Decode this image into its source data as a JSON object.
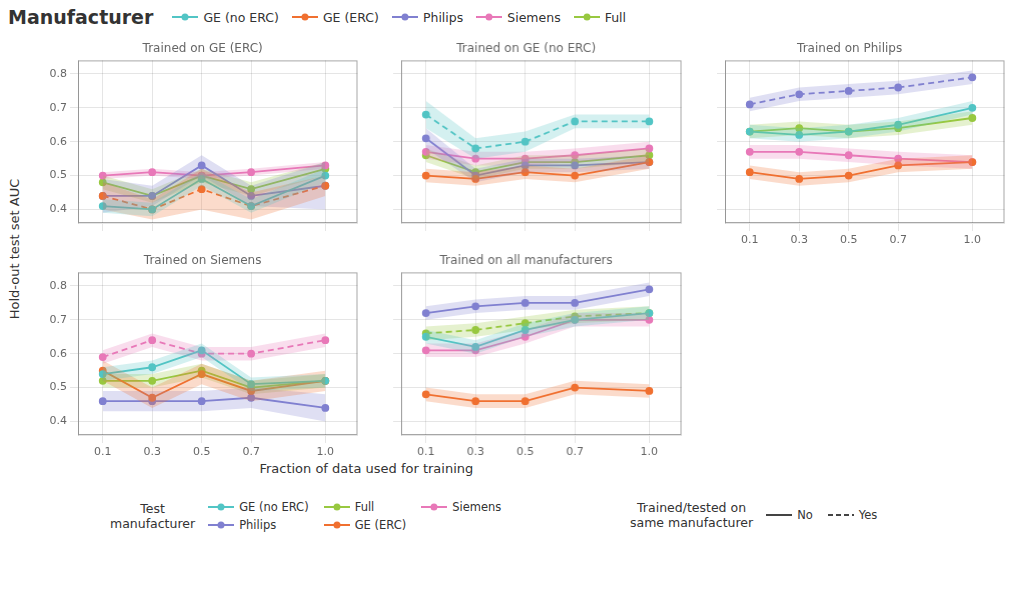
{
  "xlabel": "Fraction of data used for training",
  "ylabel": "Hold-out test set AUC",
  "legends": [
    {
      "title": "Manufacturer",
      "items": [
        {
          "name": "GE (no ERC)",
          "color": "#52c5c5",
          "marker": "circle",
          "line_style": "solid"
        },
        {
          "name": "GE (ERC)",
          "color": "#f07030",
          "marker": "circle",
          "line_style": "solid"
        },
        {
          "name": "Philips",
          "color": "#8080d0",
          "marker": "circle",
          "line_style": "solid"
        },
        {
          "name": "Siemens",
          "color": "#e878b8",
          "marker": "circle",
          "line_style": "solid"
        },
        {
          "name": "Full",
          "color": "#98c840",
          "marker": "circle",
          "line_style": "solid"
        }
      ]
    },
    {
      "title": "Test\nmanufacturer",
      "items": [
        {
          "name": "GE (no ERC)",
          "color": "#52c5c5",
          "marker": "circle",
          "line_style": "solid"
        },
        {
          "name": "Philips",
          "color": "#8080d0",
          "marker": "circle",
          "line_style": "solid"
        },
        {
          "name": "Full",
          "color": "#98c840",
          "marker": "circle",
          "line_style": "solid"
        },
        {
          "name": "GE (ERC)",
          "color": "#f07030",
          "marker": "circle",
          "line_style": "solid"
        },
        {
          "name": "Siemens",
          "color": "#e878b8",
          "marker": "circle",
          "line_style": "solid"
        }
      ]
    },
    {
      "title": "Trained/tested on\nsame manufacturer",
      "items": [
        {
          "name": "No",
          "color": "#444444",
          "line_style": "solid"
        },
        {
          "name": "Yes",
          "color": "#444444",
          "line_style": "dashed"
        }
      ]
    }
  ],
  "chart_data": [
    {
      "type": "line",
      "title": "Trained on GE (ERC)",
      "marker": "circle",
      "grid": true,
      "tick_labels": "y",
      "x": [
        0.1,
        0.3,
        0.5,
        0.7,
        1.0
      ],
      "xlim": [
        0.0,
        1.13
      ],
      "xticks": [
        0.1,
        0.3,
        0.5,
        0.7,
        {
          "value": 1.0,
          "label": "1.0"
        }
      ],
      "ylim": [
        0.36,
        0.84
      ],
      "yticks": [
        0.4,
        0.5,
        0.6,
        0.7,
        0.8
      ],
      "series": [
        {
          "name": "GE (no ERC)",
          "color": "#52c5c5",
          "line_style": "solid",
          "values": [
            0.41,
            0.4,
            0.49,
            0.41,
            0.5
          ],
          "yerr": [
            0.02,
            0.02,
            0.02,
            0.02,
            0.02
          ]
        },
        {
          "name": "GE (ERC)",
          "color": "#f07030",
          "line_style": "dashed",
          "values": [
            0.44,
            0.4,
            0.46,
            0.41,
            0.47
          ],
          "yerr": [
            0.04,
            0.03,
            0.06,
            0.04,
            0.03
          ]
        },
        {
          "name": "Philips",
          "color": "#8080d0",
          "line_style": "solid",
          "values": [
            0.44,
            0.44,
            0.53,
            0.44,
            0.47
          ],
          "yerr": [
            0.05,
            0.03,
            0.03,
            0.03,
            0.07
          ]
        },
        {
          "name": "Siemens",
          "color": "#e878b8",
          "line_style": "solid",
          "values": [
            0.5,
            0.51,
            0.5,
            0.51,
            0.53
          ],
          "yerr": [
            0.01,
            0.01,
            0.01,
            0.01,
            0.01
          ]
        },
        {
          "name": "Full",
          "color": "#98c840",
          "line_style": "solid",
          "values": [
            0.48,
            0.44,
            0.5,
            0.46,
            0.52
          ],
          "yerr": [
            0.02,
            0.02,
            0.02,
            0.02,
            0.02
          ]
        }
      ]
    },
    {
      "type": "line",
      "title": "Trained on GE (no ERC)",
      "marker": "circle",
      "grid": true,
      "tick_labels": false,
      "x": [
        0.1,
        0.3,
        0.5,
        0.7,
        1.0
      ],
      "xlim": [
        0.0,
        1.13
      ],
      "xticks": [
        0.1,
        0.3,
        0.5,
        0.7,
        {
          "value": 1.0,
          "label": "1.0"
        }
      ],
      "ylim": [
        0.36,
        0.84
      ],
      "yticks": [
        0.4,
        0.5,
        0.6,
        0.7,
        0.8
      ],
      "series": [
        {
          "name": "GE (no ERC)",
          "color": "#52c5c5",
          "line_style": "dashed",
          "values": [
            0.68,
            0.58,
            0.6,
            0.66,
            0.66
          ],
          "yerr": [
            0.04,
            0.03,
            0.03,
            0.02,
            0.02
          ]
        },
        {
          "name": "GE (ERC)",
          "color": "#f07030",
          "line_style": "solid",
          "values": [
            0.5,
            0.49,
            0.51,
            0.5,
            0.54
          ],
          "yerr": [
            0.02,
            0.02,
            0.02,
            0.02,
            0.02
          ]
        },
        {
          "name": "Philips",
          "color": "#8080d0",
          "line_style": "solid",
          "values": [
            0.61,
            0.5,
            0.53,
            0.53,
            0.54
          ],
          "yerr": [
            0.03,
            0.02,
            0.02,
            0.02,
            0.02
          ]
        },
        {
          "name": "Siemens",
          "color": "#e878b8",
          "line_style": "solid",
          "values": [
            0.57,
            0.55,
            0.55,
            0.56,
            0.58
          ],
          "yerr": [
            0.02,
            0.02,
            0.02,
            0.02,
            0.02
          ]
        },
        {
          "name": "Full",
          "color": "#98c840",
          "line_style": "solid",
          "values": [
            0.56,
            0.51,
            0.54,
            0.54,
            0.56
          ],
          "yerr": [
            0.02,
            0.02,
            0.02,
            0.02,
            0.02
          ]
        }
      ]
    },
    {
      "type": "line",
      "title": "Trained on Philips",
      "marker": "circle",
      "grid": true,
      "tick_labels": "x",
      "x": [
        0.1,
        0.3,
        0.5,
        0.7,
        1.0
      ],
      "xlim": [
        0.0,
        1.13
      ],
      "xticks": [
        0.1,
        0.3,
        0.5,
        0.7,
        {
          "value": 1.0,
          "label": "1.0"
        }
      ],
      "ylim": [
        0.36,
        0.84
      ],
      "yticks": [
        0.4,
        0.5,
        0.6,
        0.7,
        0.8
      ],
      "series": [
        {
          "name": "GE (no ERC)",
          "color": "#52c5c5",
          "line_style": "solid",
          "values": [
            0.63,
            0.62,
            0.63,
            0.65,
            0.7
          ],
          "yerr": [
            0.02,
            0.02,
            0.02,
            0.02,
            0.02
          ]
        },
        {
          "name": "GE (ERC)",
          "color": "#f07030",
          "line_style": "solid",
          "values": [
            0.51,
            0.49,
            0.5,
            0.53,
            0.54
          ],
          "yerr": [
            0.02,
            0.02,
            0.02,
            0.02,
            0.02
          ]
        },
        {
          "name": "Philips",
          "color": "#8080d0",
          "line_style": "dashed",
          "values": [
            0.71,
            0.74,
            0.75,
            0.76,
            0.79
          ],
          "yerr": [
            0.02,
            0.02,
            0.02,
            0.02,
            0.02
          ]
        },
        {
          "name": "Siemens",
          "color": "#e878b8",
          "line_style": "solid",
          "values": [
            0.57,
            0.57,
            0.56,
            0.55,
            0.54
          ],
          "yerr": [
            0.02,
            0.02,
            0.02,
            0.02,
            0.02
          ]
        },
        {
          "name": "Full",
          "color": "#98c840",
          "line_style": "solid",
          "values": [
            0.63,
            0.64,
            0.63,
            0.64,
            0.67
          ],
          "yerr": [
            0.02,
            0.02,
            0.02,
            0.02,
            0.02
          ]
        }
      ]
    },
    {
      "type": "line",
      "title": "Trained on Siemens",
      "marker": "circle",
      "grid": true,
      "x": [
        0.1,
        0.3,
        0.5,
        0.7,
        1.0
      ],
      "xlim": [
        0.0,
        1.13
      ],
      "xticks": [
        0.1,
        0.3,
        0.5,
        0.7,
        {
          "value": 1.0,
          "label": "1.0"
        }
      ],
      "ylim": [
        0.36,
        0.84
      ],
      "yticks": [
        0.4,
        0.5,
        0.6,
        0.7,
        0.8
      ],
      "series": [
        {
          "name": "GE (no ERC)",
          "color": "#52c5c5",
          "line_style": "solid",
          "values": [
            0.54,
            0.56,
            0.61,
            0.51,
            0.52
          ],
          "yerr": [
            0.02,
            0.02,
            0.02,
            0.02,
            0.02
          ]
        },
        {
          "name": "GE (ERC)",
          "color": "#f07030",
          "line_style": "solid",
          "values": [
            0.55,
            0.47,
            0.54,
            0.49,
            0.52
          ],
          "yerr": [
            0.03,
            0.03,
            0.03,
            0.03,
            0.03
          ]
        },
        {
          "name": "Philips",
          "color": "#8080d0",
          "line_style": "solid",
          "values": [
            0.46,
            0.46,
            0.46,
            0.47,
            0.44
          ],
          "yerr": [
            0.03,
            0.03,
            0.03,
            0.03,
            0.04
          ]
        },
        {
          "name": "Siemens",
          "color": "#e878b8",
          "line_style": "dashed",
          "values": [
            0.59,
            0.64,
            0.6,
            0.6,
            0.64
          ],
          "yerr": [
            0.02,
            0.02,
            0.02,
            0.02,
            0.02
          ]
        },
        {
          "name": "Full",
          "color": "#98c840",
          "line_style": "solid",
          "values": [
            0.52,
            0.52,
            0.55,
            0.5,
            0.52
          ],
          "yerr": [
            0.02,
            0.02,
            0.02,
            0.02,
            0.02
          ]
        }
      ]
    },
    {
      "type": "line",
      "title": "Trained on all manufacturers",
      "marker": "circle",
      "grid": true,
      "tick_labels": "x",
      "x": [
        0.1,
        0.3,
        0.5,
        0.7,
        1.0
      ],
      "xlim": [
        0.0,
        1.13
      ],
      "xticks": [
        0.1,
        0.3,
        0.5,
        0.7,
        {
          "value": 1.0,
          "label": "1.0"
        }
      ],
      "ylim": [
        0.36,
        0.84
      ],
      "yticks": [
        0.4,
        0.5,
        0.6,
        0.7,
        0.8
      ],
      "series": [
        {
          "name": "GE (no ERC)",
          "color": "#52c5c5",
          "line_style": "solid",
          "values": [
            0.65,
            0.62,
            0.67,
            0.7,
            0.72
          ],
          "yerr": [
            0.02,
            0.02,
            0.02,
            0.02,
            0.02
          ]
        },
        {
          "name": "GE (ERC)",
          "color": "#f07030",
          "line_style": "solid",
          "values": [
            0.48,
            0.46,
            0.46,
            0.5,
            0.49
          ],
          "yerr": [
            0.02,
            0.02,
            0.02,
            0.02,
            0.02
          ]
        },
        {
          "name": "Philips",
          "color": "#8080d0",
          "line_style": "solid",
          "values": [
            0.72,
            0.74,
            0.75,
            0.75,
            0.79
          ],
          "yerr": [
            0.02,
            0.02,
            0.02,
            0.02,
            0.02
          ]
        },
        {
          "name": "Siemens",
          "color": "#e878b8",
          "line_style": "solid",
          "values": [
            0.61,
            0.61,
            0.65,
            0.7,
            0.7
          ],
          "yerr": [
            0.02,
            0.02,
            0.02,
            0.02,
            0.02
          ]
        },
        {
          "name": "Full",
          "color": "#98c840",
          "line_style": "dashed",
          "values": [
            0.66,
            0.67,
            0.69,
            0.71,
            0.72
          ],
          "yerr": [
            0.02,
            0.02,
            0.02,
            0.02,
            0.02
          ]
        }
      ]
    }
  ]
}
